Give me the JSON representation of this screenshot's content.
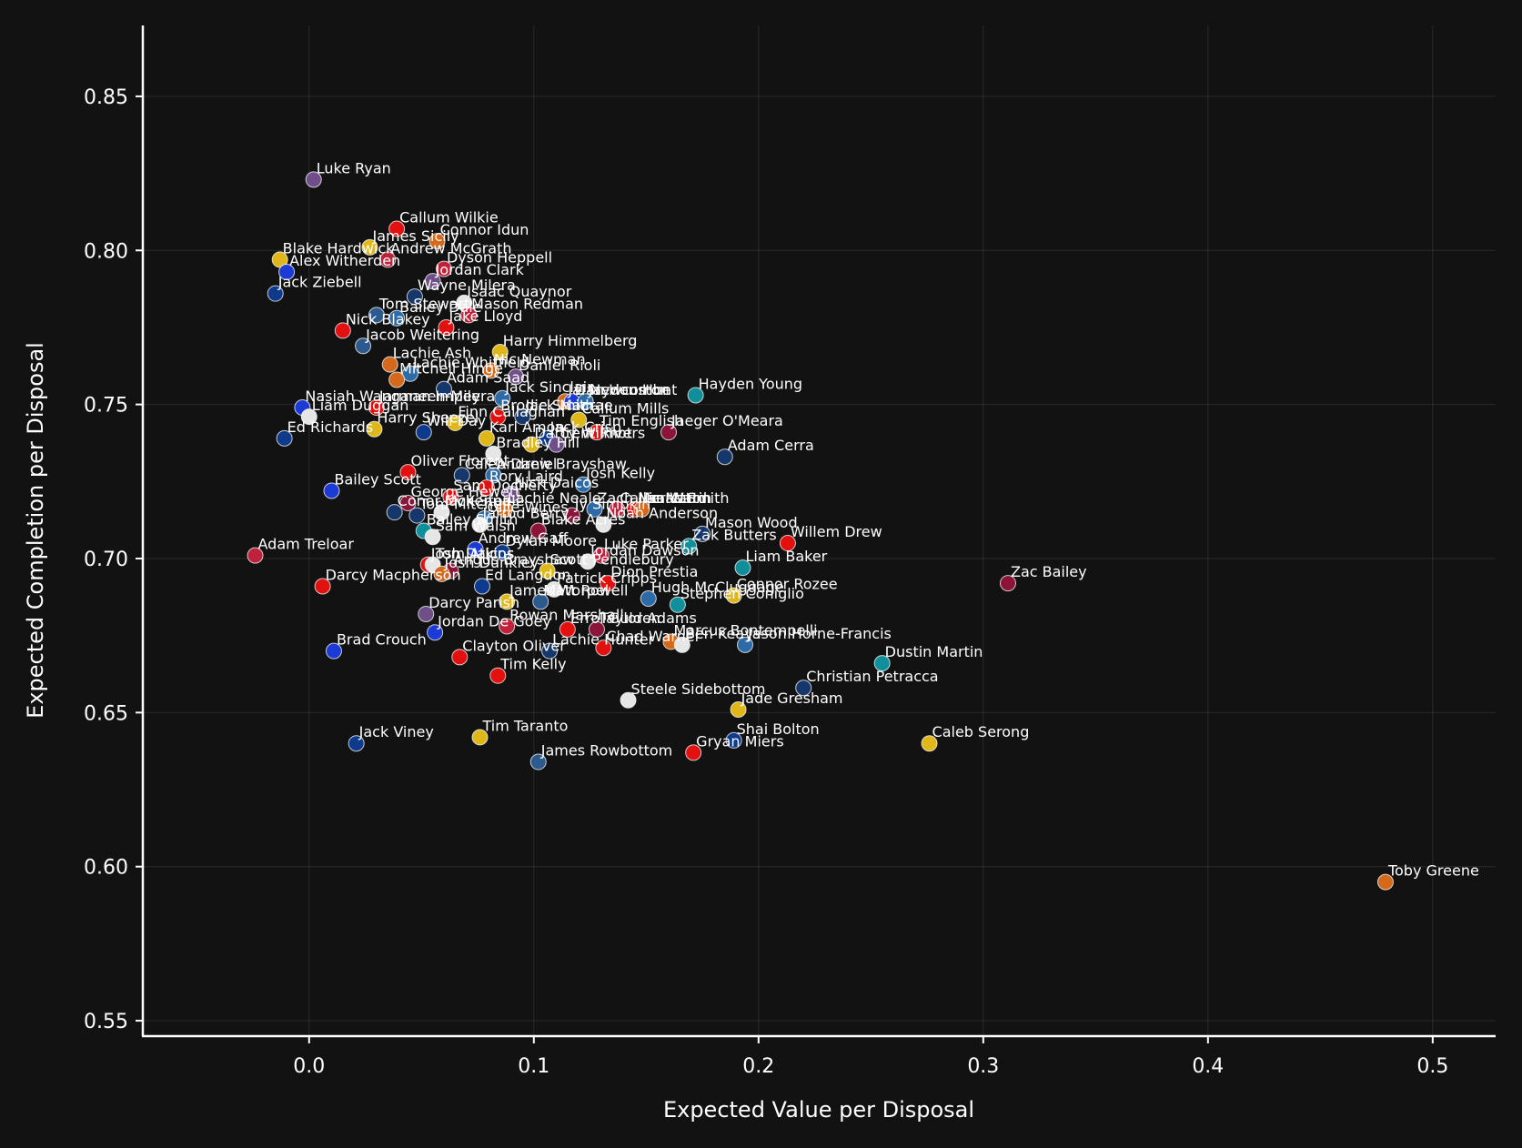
{
  "chart_data": {
    "type": "scatter",
    "xlabel": "Expected Value per Disposal",
    "ylabel": "Expected Completion per Disposal",
    "xlim": [
      -0.074,
      0.528
    ],
    "ylim": [
      0.545,
      0.873
    ],
    "xticks": [
      0.0,
      0.1,
      0.2,
      0.3,
      0.4,
      0.5
    ],
    "yticks": [
      0.55,
      0.6,
      0.65,
      0.7,
      0.75,
      0.8,
      0.85
    ],
    "xtick_labels": [
      "0.0",
      "0.1",
      "0.2",
      "0.3",
      "0.4",
      "0.5"
    ],
    "ytick_labels": [
      "0.55",
      "0.60",
      "0.65",
      "0.70",
      "0.75",
      "0.80",
      "0.85"
    ],
    "grid": true,
    "points": [
      {
        "x": 0.002,
        "y": 0.823,
        "color": "#6f4e8a",
        "label": "Luke Ryan"
      },
      {
        "x": 0.039,
        "y": 0.807,
        "color": "#e2100f",
        "label": "Callum Wilkie"
      },
      {
        "x": 0.057,
        "y": 0.803,
        "color": "#d4691b",
        "label": "Connor Idun"
      },
      {
        "x": 0.027,
        "y": 0.801,
        "color": "#e0b719",
        "label": "James Sicily"
      },
      {
        "x": 0.035,
        "y": 0.797,
        "color": "#c0223b",
        "label": "Andrew McGrath"
      },
      {
        "x": -0.013,
        "y": 0.797,
        "color": "#e0b719",
        "label": "Blake Hardwick"
      },
      {
        "x": 0.06,
        "y": 0.794,
        "color": "#c0223b",
        "label": "Dyson Heppell"
      },
      {
        "x": -0.01,
        "y": 0.793,
        "color": "#1c3bd6",
        "label": "Alex Witherden"
      },
      {
        "x": 0.055,
        "y": 0.79,
        "color": "#6f4e8a",
        "label": "Jordan Clark"
      },
      {
        "x": -0.015,
        "y": 0.786,
        "color": "#0d3a8c",
        "label": "Jack Ziebell"
      },
      {
        "x": 0.047,
        "y": 0.785,
        "color": "#16376b",
        "label": "Wayne Milera"
      },
      {
        "x": 0.069,
        "y": 0.783,
        "color": "#e6e6e6",
        "label": "Isaac Quaynor"
      },
      {
        "x": 0.071,
        "y": 0.779,
        "color": "#c0223b",
        "label": "Mason Redman"
      },
      {
        "x": 0.03,
        "y": 0.779,
        "color": "#2c5a8f",
        "label": "Tom Stewart"
      },
      {
        "x": 0.039,
        "y": 0.778,
        "color": "#2c6aa8",
        "label": "Bailey Dale"
      },
      {
        "x": 0.061,
        "y": 0.775,
        "color": "#e2100f",
        "label": "Jake Lloyd"
      },
      {
        "x": 0.015,
        "y": 0.774,
        "color": "#e2100f",
        "label": "Nick Blakey"
      },
      {
        "x": 0.024,
        "y": 0.769,
        "color": "#2c5a8f",
        "label": "Jacob Weitering"
      },
      {
        "x": 0.085,
        "y": 0.767,
        "color": "#e0b719",
        "label": "Harry Himmelberg"
      },
      {
        "x": 0.036,
        "y": 0.763,
        "color": "#d4691b",
        "label": "Lachie Ash"
      },
      {
        "x": 0.081,
        "y": 0.761,
        "color": "#d4691b",
        "label": "Nic Newman"
      },
      {
        "x": 0.045,
        "y": 0.76,
        "color": "#2c6aa8",
        "label": "Lachie Whitfield"
      },
      {
        "x": 0.092,
        "y": 0.759,
        "color": "#6f4e8a",
        "label": "Daniel Rioli"
      },
      {
        "x": 0.039,
        "y": 0.758,
        "color": "#d4691b",
        "label": "Mitchell Hinge"
      },
      {
        "x": 0.06,
        "y": 0.755,
        "color": "#16376b",
        "label": "Adam Saad"
      },
      {
        "x": 0.172,
        "y": 0.753,
        "color": "#0f8f9c",
        "label": "Hayden Young"
      },
      {
        "x": 0.086,
        "y": 0.752,
        "color": "#2c6aa8",
        "label": "Jack Sinclair"
      },
      {
        "x": 0.114,
        "y": 0.751,
        "color": "#d4691b",
        "label": "Jai Newcombe"
      },
      {
        "x": 0.117,
        "y": 0.751,
        "color": "#1c3bd6",
        "label": "Dan Houston"
      },
      {
        "x": 0.123,
        "y": 0.751,
        "color": "#2c6aa8",
        "label": "Jayden Hunt"
      },
      {
        "x": -0.003,
        "y": 0.749,
        "color": "#1c3bd6",
        "label": "Nasiah Wanganeen-Milera"
      },
      {
        "x": 0.03,
        "y": 0.749,
        "color": "#e2100f",
        "label": "Jarman Impey"
      },
      {
        "x": 0.0,
        "y": 0.746,
        "color": "#e6e6e6",
        "label": "Liam Duggan"
      },
      {
        "x": 0.084,
        "y": 0.746,
        "color": "#e2100f",
        "label": "Brodie Smith"
      },
      {
        "x": 0.095,
        "y": 0.746,
        "color": "#16376b",
        "label": "Jack Macrae"
      },
      {
        "x": 0.12,
        "y": 0.745,
        "color": "#e0b719",
        "label": "Callum Mills"
      },
      {
        "x": 0.065,
        "y": 0.744,
        "color": "#e0b719",
        "label": "Finn Callaghan"
      },
      {
        "x": 0.029,
        "y": 0.742,
        "color": "#e0b719",
        "label": "Harry Sheezel"
      },
      {
        "x": 0.16,
        "y": 0.741,
        "color": "#8a1538",
        "label": "Jaeger O'Meara"
      },
      {
        "x": 0.051,
        "y": 0.741,
        "color": "#0d3a8c",
        "label": "Will Day"
      },
      {
        "x": 0.128,
        "y": 0.741,
        "color": "#e2100f",
        "label": "Tim English"
      },
      {
        "x": -0.011,
        "y": 0.739,
        "color": "#0d3a8c",
        "label": "Ed Richards"
      },
      {
        "x": 0.079,
        "y": 0.739,
        "color": "#e0b719",
        "label": "Karl Amon"
      },
      {
        "x": 0.106,
        "y": 0.739,
        "color": "#0d3a8c",
        "label": "Jack Crisp"
      },
      {
        "x": 0.11,
        "y": 0.737,
        "color": "#6f4e8a",
        "label": "Trent Rivers"
      },
      {
        "x": 0.099,
        "y": 0.737,
        "color": "#e0b719",
        "label": "Darcy Wilmot"
      },
      {
        "x": 0.082,
        "y": 0.734,
        "color": "#e6e6e6",
        "label": "Bradley Hill"
      },
      {
        "x": 0.185,
        "y": 0.733,
        "color": "#16376b",
        "label": "Adam Cerra"
      },
      {
        "x": 0.044,
        "y": 0.728,
        "color": "#e2100f",
        "label": "Oliver Florent"
      },
      {
        "x": 0.068,
        "y": 0.727,
        "color": "#16376b",
        "label": "Caleb Daniel"
      },
      {
        "x": 0.082,
        "y": 0.727,
        "color": "#2c6aa8",
        "label": "Andrew Brayshaw"
      },
      {
        "x": 0.122,
        "y": 0.724,
        "color": "#2c6aa8",
        "label": "Josh Kelly"
      },
      {
        "x": 0.01,
        "y": 0.722,
        "color": "#1c3bd6",
        "label": "Bailey Scott"
      },
      {
        "x": 0.079,
        "y": 0.723,
        "color": "#e2100f",
        "label": "Rory Laird"
      },
      {
        "x": 0.09,
        "y": 0.721,
        "color": "#6f4e8a",
        "label": "Nick Daicos"
      },
      {
        "x": 0.063,
        "y": 0.72,
        "color": "#e2100f",
        "label": "Sam Docherty"
      },
      {
        "x": 0.044,
        "y": 0.718,
        "color": "#8a1538",
        "label": "George Hewett"
      },
      {
        "x": 0.137,
        "y": 0.716,
        "color": "#c0223b",
        "label": "Callan Ward"
      },
      {
        "x": 0.127,
        "y": 0.716,
        "color": "#2c6aa8",
        "label": "Zach Merrett"
      },
      {
        "x": 0.145,
        "y": 0.716,
        "color": "#e2100f",
        "label": "Nic Martin"
      },
      {
        "x": 0.148,
        "y": 0.716,
        "color": "#d4691b",
        "label": "Isaac Smith"
      },
      {
        "x": 0.087,
        "y": 0.716,
        "color": "#d4691b",
        "label": "Lachie Neale"
      },
      {
        "x": 0.038,
        "y": 0.715,
        "color": "#16376b",
        "label": "Conor McKenna"
      },
      {
        "x": 0.059,
        "y": 0.715,
        "color": "#e6e6e6",
        "label": "Jack Steele"
      },
      {
        "x": 0.117,
        "y": 0.714,
        "color": "#8a1538",
        "label": "Jy Simpkin"
      },
      {
        "x": 0.048,
        "y": 0.714,
        "color": "#16376b",
        "label": "Tom Mitchell"
      },
      {
        "x": 0.078,
        "y": 0.713,
        "color": "#2c6aa8",
        "label": "Ollie Wines"
      },
      {
        "x": 0.076,
        "y": 0.711,
        "color": "#e6e6e6",
        "label": "Jarrod Berry"
      },
      {
        "x": 0.131,
        "y": 0.711,
        "color": "#e6e6e6",
        "label": "Noah Anderson"
      },
      {
        "x": 0.051,
        "y": 0.709,
        "color": "#0f8f9c",
        "label": "Bailey Smith"
      },
      {
        "x": 0.102,
        "y": 0.709,
        "color": "#8a1538",
        "label": "Blake Acres"
      },
      {
        "x": 0.175,
        "y": 0.708,
        "color": "#16376b",
        "label": "Mason Wood"
      },
      {
        "x": 0.055,
        "y": 0.707,
        "color": "#e6e6e6",
        "label": "Sam Walsh"
      },
      {
        "x": 0.213,
        "y": 0.705,
        "color": "#e2100f",
        "label": "Willem Drew"
      },
      {
        "x": 0.169,
        "y": 0.704,
        "color": "#0f8f9c",
        "label": "Zak Butters"
      },
      {
        "x": 0.074,
        "y": 0.703,
        "color": "#1c3bd6",
        "label": "Andrew Gaff"
      },
      {
        "x": 0.086,
        "y": 0.702,
        "color": "#0d3a8c",
        "label": "Dylan Moore"
      },
      {
        "x": -0.024,
        "y": 0.701,
        "color": "#c0223b",
        "label": "Adam Treloar"
      },
      {
        "x": 0.13,
        "y": 0.701,
        "color": "#c0223b",
        "label": "Luke Parker"
      },
      {
        "x": 0.124,
        "y": 0.699,
        "color": "#e6e6e6",
        "label": "Jordan Dawson"
      },
      {
        "x": 0.053,
        "y": 0.698,
        "color": "#e2100f",
        "label": "Josh Daicos"
      },
      {
        "x": 0.055,
        "y": 0.698,
        "color": "#e6e6e6",
        "label": "Tom Atkins"
      },
      {
        "x": 0.193,
        "y": 0.697,
        "color": "#0f8f9c",
        "label": "Liam Baker"
      },
      {
        "x": 0.106,
        "y": 0.696,
        "color": "#e0b719",
        "label": "Scott Pendlebury"
      },
      {
        "x": 0.063,
        "y": 0.696,
        "color": "#8a1538",
        "label": "Angus Brayshaw"
      },
      {
        "x": 0.059,
        "y": 0.695,
        "color": "#d4691b",
        "label": "Josh Dunkley"
      },
      {
        "x": 0.311,
        "y": 0.692,
        "color": "#8a1538",
        "label": "Zac Bailey"
      },
      {
        "x": 0.133,
        "y": 0.692,
        "color": "#e2100f",
        "label": "Dion Prestia"
      },
      {
        "x": 0.077,
        "y": 0.691,
        "color": "#0d3a8c",
        "label": "Ed Langdon"
      },
      {
        "x": 0.006,
        "y": 0.691,
        "color": "#e2100f",
        "label": "Darcy Macpherson"
      },
      {
        "x": 0.109,
        "y": 0.69,
        "color": "#e6e6e6",
        "label": "Patrick Cripps"
      },
      {
        "x": 0.189,
        "y": 0.688,
        "color": "#e0b719",
        "label": "Connor Rozee"
      },
      {
        "x": 0.151,
        "y": 0.687,
        "color": "#2c6aa8",
        "label": "Hugh McCluggage"
      },
      {
        "x": 0.088,
        "y": 0.686,
        "color": "#e0b719",
        "label": "James Worpel"
      },
      {
        "x": 0.103,
        "y": 0.686,
        "color": "#2c5a8f",
        "label": "Matt Rowell"
      },
      {
        "x": 0.164,
        "y": 0.685,
        "color": "#0f8f9c",
        "label": "Stephen Coniglio"
      },
      {
        "x": 0.052,
        "y": 0.682,
        "color": "#6f4e8a",
        "label": "Darcy Parish"
      },
      {
        "x": 0.088,
        "y": 0.678,
        "color": "#c0223b",
        "label": "Rowan Marshall"
      },
      {
        "x": 0.128,
        "y": 0.677,
        "color": "#8a1538",
        "label": "Taylor Adams"
      },
      {
        "x": 0.115,
        "y": 0.677,
        "color": "#e2100f",
        "label": "Errol Gulden"
      },
      {
        "x": 0.056,
        "y": 0.676,
        "color": "#1c3bd6",
        "label": "Jordan De Goey"
      },
      {
        "x": 0.161,
        "y": 0.673,
        "color": "#d4691b",
        "label": "Marcus Bontempelli"
      },
      {
        "x": 0.166,
        "y": 0.672,
        "color": "#e6e6e6",
        "label": "Ben Keays"
      },
      {
        "x": 0.194,
        "y": 0.672,
        "color": "#2c6aa8",
        "label": "Jason Horne-Francis"
      },
      {
        "x": 0.131,
        "y": 0.671,
        "color": "#e2100f",
        "label": "Chad Warner"
      },
      {
        "x": 0.011,
        "y": 0.67,
        "color": "#1c3bd6",
        "label": "Brad Crouch"
      },
      {
        "x": 0.107,
        "y": 0.67,
        "color": "#16376b",
        "label": "Lachie Hunter"
      },
      {
        "x": 0.067,
        "y": 0.668,
        "color": "#e2100f",
        "label": "Clayton Oliver"
      },
      {
        "x": 0.255,
        "y": 0.666,
        "color": "#0f8f9c",
        "label": "Dustin Martin"
      },
      {
        "x": 0.084,
        "y": 0.662,
        "color": "#e2100f",
        "label": "Tim Kelly"
      },
      {
        "x": 0.22,
        "y": 0.658,
        "color": "#16376b",
        "label": "Christian Petracca"
      },
      {
        "x": 0.142,
        "y": 0.654,
        "color": "#e6e6e6",
        "label": "Steele Sidebottom"
      },
      {
        "x": 0.191,
        "y": 0.651,
        "color": "#e0b719",
        "label": "Jade Gresham"
      },
      {
        "x": 0.076,
        "y": 0.642,
        "color": "#e0b719",
        "label": "Tim Taranto"
      },
      {
        "x": 0.189,
        "y": 0.641,
        "color": "#0d3a8c",
        "label": "Shai Bolton"
      },
      {
        "x": 0.021,
        "y": 0.64,
        "color": "#0d3a8c",
        "label": "Jack Viney"
      },
      {
        "x": 0.276,
        "y": 0.64,
        "color": "#e0b719",
        "label": "Caleb Serong"
      },
      {
        "x": 0.171,
        "y": 0.637,
        "color": "#e2100f",
        "label": "Gryan Miers"
      },
      {
        "x": 0.102,
        "y": 0.634,
        "color": "#2c5a8f",
        "label": "James Rowbottom"
      },
      {
        "x": 0.479,
        "y": 0.595,
        "color": "#d4691b",
        "label": "Toby Greene"
      }
    ]
  }
}
